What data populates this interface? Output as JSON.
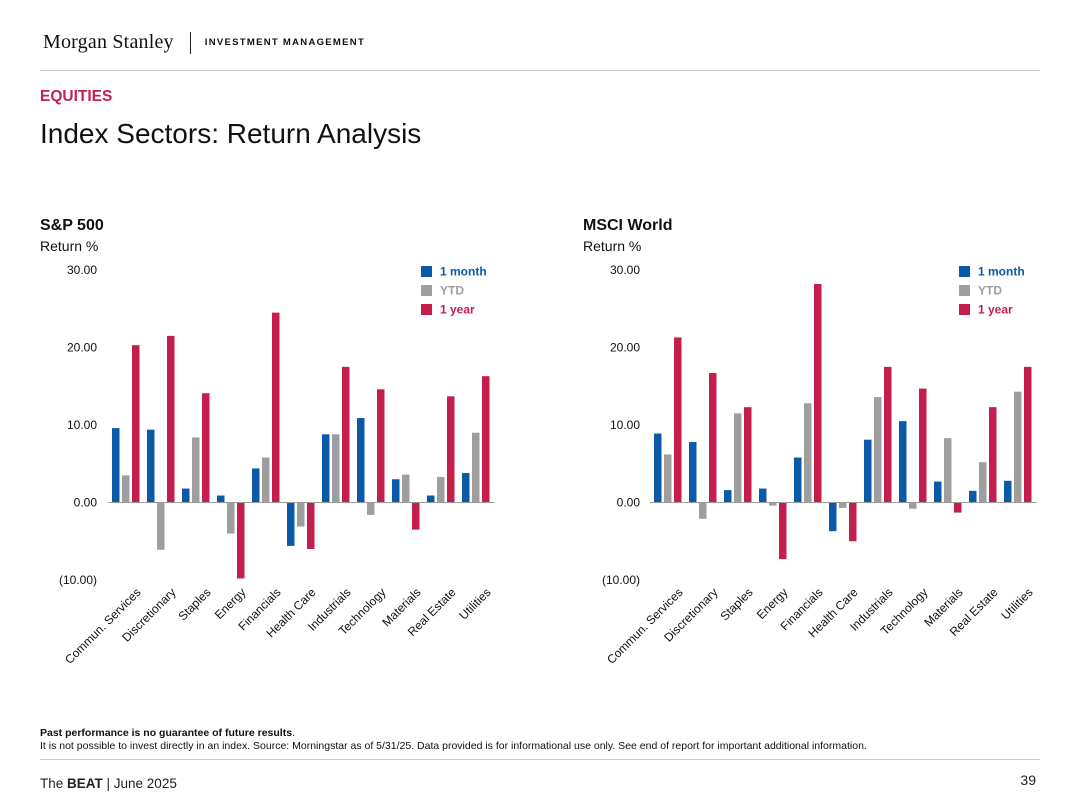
{
  "header": {
    "brand": "Morgan Stanley",
    "division": "INVESTMENT MANAGEMENT"
  },
  "section_label": "EQUITIES",
  "page_title": "Index Sectors: Return Analysis",
  "colors": {
    "accent": "#C0234F",
    "month": "#0B5AA7",
    "ytd": "#9E9E9E",
    "year": "#C41E4D"
  },
  "chart_data": [
    {
      "type": "bar",
      "title": "S&P 500",
      "ylabel": "Return %",
      "ylim": [
        -10,
        30
      ],
      "ytick_labels": [
        "30.00",
        "20.00",
        "10.00",
        "0.00",
        "(10.00)"
      ],
      "yticks": [
        30,
        20,
        10,
        0,
        -10
      ],
      "categories": [
        "Commun. Services",
        "Discretionary",
        "Staples",
        "Energy",
        "Financials",
        "Health Care",
        "Industrials",
        "Technology",
        "Materials",
        "Real Estate",
        "Utilities"
      ],
      "legend": [
        "1 month",
        "YTD",
        "1 year"
      ],
      "series": [
        {
          "name": "1 month",
          "values": [
            9.6,
            9.4,
            1.8,
            0.9,
            4.4,
            -5.6,
            8.8,
            10.9,
            3.0,
            0.9,
            3.8
          ]
        },
        {
          "name": "YTD",
          "values": [
            3.5,
            -6.1,
            8.4,
            -4.0,
            5.8,
            -3.1,
            8.8,
            -1.6,
            3.6,
            3.3,
            9.0
          ]
        },
        {
          "name": "1 year",
          "values": [
            20.3,
            21.5,
            14.1,
            -9.8,
            24.5,
            -6.0,
            17.5,
            14.6,
            -3.5,
            13.7,
            16.3
          ]
        }
      ]
    },
    {
      "type": "bar",
      "title": "MSCI World",
      "ylabel": "Return %",
      "ylim": [
        -10,
        30
      ],
      "ytick_labels": [
        "30.00",
        "20.00",
        "10.00",
        "0.00",
        "(10.00)"
      ],
      "yticks": [
        30,
        20,
        10,
        0,
        -10
      ],
      "categories": [
        "Commun. Services",
        "Discretionary",
        "Staples",
        "Energy",
        "Financials",
        "Health Care",
        "Industrials",
        "Technology",
        "Materials",
        "Real Estate",
        "Utilities"
      ],
      "legend": [
        "1 month",
        "YTD",
        "1 year"
      ],
      "series": [
        {
          "name": "1 month",
          "values": [
            8.9,
            7.8,
            1.6,
            1.8,
            5.8,
            -3.7,
            8.1,
            10.5,
            2.7,
            1.5,
            2.8
          ]
        },
        {
          "name": "YTD",
          "values": [
            6.2,
            -2.1,
            11.5,
            -0.4,
            12.8,
            -0.7,
            13.6,
            -0.8,
            8.3,
            5.2,
            14.3
          ]
        },
        {
          "name": "1 year",
          "values": [
            21.3,
            16.7,
            12.3,
            -7.3,
            28.2,
            -5.0,
            17.5,
            14.7,
            -1.3,
            12.3,
            17.5
          ]
        }
      ]
    }
  ],
  "disclaimer": {
    "bold": "Past performance is no guarantee of future results",
    "bold_end": ".",
    "text": "It is not possible to invest directly in an index. Source: Morningstar as of 5/31/25. Data provided is for informational use only. See end of report for important additional information."
  },
  "footer": {
    "prefix": "The ",
    "bold": "BEAT",
    "suffix": " | June 2025",
    "page_number": "39"
  }
}
